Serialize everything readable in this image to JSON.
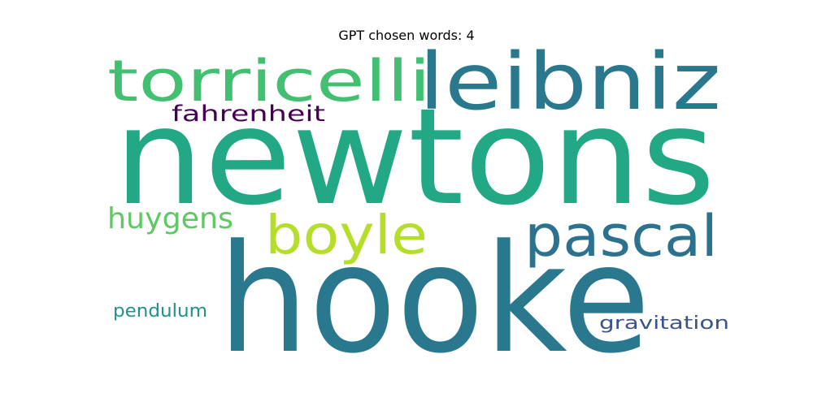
{
  "title": "GPT chosen words: 4",
  "words": [
    {
      "text": "newtons",
      "color": "#22a884"
    },
    {
      "text": "hooke",
      "color": "#2a788e"
    },
    {
      "text": "leibniz",
      "color": "#2a788e"
    },
    {
      "text": "torricelli",
      "color": "#43bf71"
    },
    {
      "text": "pascal",
      "color": "#2c728e"
    },
    {
      "text": "boyle",
      "color": "#b5de2b"
    },
    {
      "text": "huygens",
      "color": "#5ec962"
    },
    {
      "text": "fahrenheit",
      "color": "#440154"
    },
    {
      "text": "pendulum",
      "color": "#21918c"
    },
    {
      "text": "gravitation",
      "color": "#3b528b"
    }
  ]
}
